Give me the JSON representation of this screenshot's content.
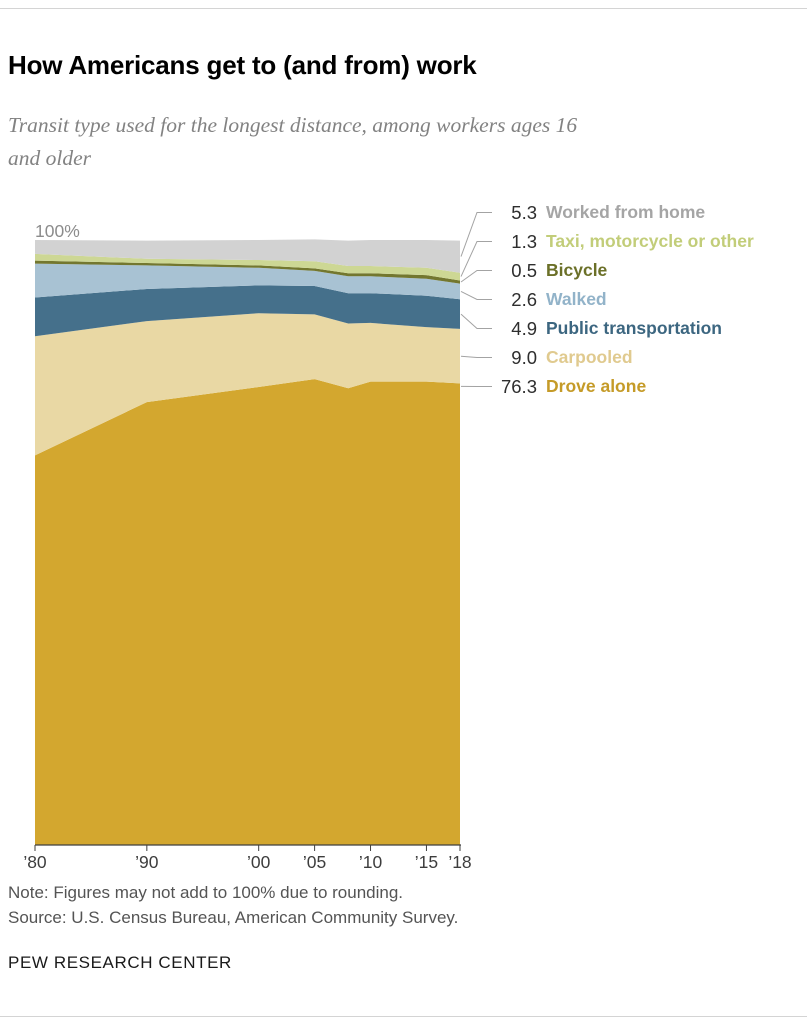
{
  "header": {
    "title": "How Americans get to (and from) work",
    "subtitle": "Transit type used for the longest distance, among workers ages 16 and older"
  },
  "chart_data": {
    "type": "area",
    "stacked": true,
    "title": "How Americans get to (and from) work",
    "y_axis_label": "100%",
    "xlim": [
      1980,
      2018
    ],
    "ylim": [
      0,
      100
    ],
    "grid": false,
    "legend_position": "right",
    "x": [
      1980,
      1990,
      2000,
      2005,
      2008,
      2010,
      2015,
      2018
    ],
    "x_ticks": [
      {
        "x": 1980,
        "label": "’80"
      },
      {
        "x": 1990,
        "label": "’90"
      },
      {
        "x": 2000,
        "label": "’00"
      },
      {
        "x": 2005,
        "label": "’05"
      },
      {
        "x": 2010,
        "label": "’10"
      },
      {
        "x": 2015,
        "label": "’15"
      },
      {
        "x": 2018,
        "label": "’18"
      }
    ],
    "series": [
      {
        "name": "Drove alone",
        "color": "#d3a72f",
        "value_2018": 76.3,
        "values": [
          64.4,
          73.2,
          75.7,
          77.0,
          75.5,
          76.6,
          76.6,
          76.3
        ]
      },
      {
        "name": "Carpooled",
        "color": "#e9d8a4",
        "value_2018": 9.0,
        "values": [
          19.7,
          13.4,
          12.2,
          10.7,
          10.7,
          9.7,
          9.0,
          9.0
        ]
      },
      {
        "name": "Public transportation",
        "color": "#45708b",
        "value_2018": 4.9,
        "values": [
          6.4,
          5.3,
          4.6,
          4.7,
          5.0,
          4.9,
          5.2,
          4.9
        ]
      },
      {
        "name": "Walked",
        "color": "#a8c2d3",
        "value_2018": 2.6,
        "values": [
          5.6,
          3.9,
          2.9,
          2.5,
          2.8,
          2.8,
          2.8,
          2.6
        ]
      },
      {
        "name": "Bicycle",
        "color": "#73772f",
        "value_2018": 0.5,
        "values": [
          0.5,
          0.4,
          0.4,
          0.4,
          0.5,
          0.5,
          0.6,
          0.5
        ]
      },
      {
        "name": "Taxi, motorcycle or other",
        "color": "#cdd794",
        "value_2018": 1.3,
        "values": [
          1.1,
          0.7,
          0.9,
          1.2,
          1.2,
          1.2,
          1.2,
          1.3
        ]
      },
      {
        "name": "Worked from home",
        "color": "#d2d2d2",
        "value_2018": 5.3,
        "values": [
          2.3,
          3.0,
          3.3,
          3.6,
          4.2,
          4.3,
          4.6,
          5.3
        ]
      }
    ]
  },
  "legend": {
    "items": [
      {
        "value": "5.3",
        "label": "Worked from home",
        "color": "#a5a5a5"
      },
      {
        "value": "1.3",
        "label": "Taxi, motorcycle or other",
        "color": "#c2cd79"
      },
      {
        "value": "0.5",
        "label": "Bicycle",
        "color": "#6b7028"
      },
      {
        "value": "2.6",
        "label": "Walked",
        "color": "#92b3c9"
      },
      {
        "value": "4.9",
        "label": "Public transportation",
        "color": "#3c6680"
      },
      {
        "value": "9.0",
        "label": "Carpooled",
        "color": "#e0ca8f"
      },
      {
        "value": "76.3",
        "label": "Drove alone",
        "color": "#c59b28"
      }
    ]
  },
  "notes": {
    "note": "Note: Figures may not add to 100% due to rounding.",
    "source": "Source: U.S. Census Bureau, American Community Survey."
  },
  "footer": {
    "brand": "PEW RESEARCH CENTER"
  }
}
